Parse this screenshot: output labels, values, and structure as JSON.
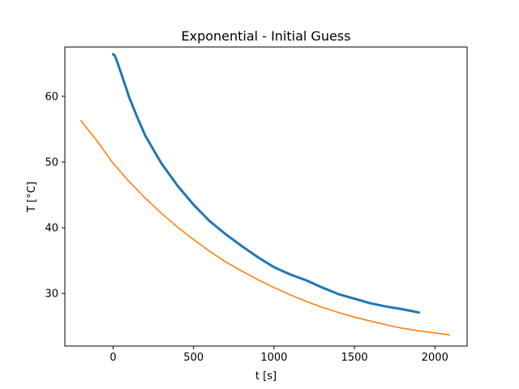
{
  "chart_data": {
    "type": "line",
    "title": "Exponential - Initial Guess",
    "xlabel": "t [s]",
    "ylabel": "T [°C]",
    "xlim": [
      -300,
      2200
    ],
    "ylim": [
      22,
      67.5
    ],
    "grid": false,
    "legend": "none",
    "xticks": [
      {
        "value": 0,
        "label": "0"
      },
      {
        "value": 500,
        "label": "500"
      },
      {
        "value": 1000,
        "label": "1000"
      },
      {
        "value": 1500,
        "label": "1500"
      },
      {
        "value": 2000,
        "label": "2000"
      }
    ],
    "yticks": [
      {
        "value": 30,
        "label": "30"
      },
      {
        "value": 40,
        "label": "40"
      },
      {
        "value": 50,
        "label": "50"
      },
      {
        "value": 60,
        "label": "60"
      }
    ],
    "series": [
      {
        "color": "#1f77b4",
        "stroke_weight": "thick",
        "x": [
          0,
          10,
          20,
          50,
          100,
          150,
          200,
          300,
          400,
          500,
          600,
          700,
          800,
          900,
          1000,
          1100,
          1200,
          1300,
          1400,
          1500,
          1600,
          1700,
          1800,
          1900
        ],
        "y": [
          66.4,
          66.2,
          65.6,
          63.5,
          59.8,
          56.8,
          54.0,
          49.8,
          46.4,
          43.5,
          41.0,
          39.0,
          37.2,
          35.5,
          34.0,
          32.9,
          32.0,
          30.9,
          29.9,
          29.2,
          28.5,
          28.0,
          27.6,
          27.1
        ]
      },
      {
        "color": "#ff7f0e",
        "stroke_weight": "normal",
        "x": [
          -200,
          -100,
          0,
          100,
          200,
          300,
          400,
          500,
          600,
          700,
          800,
          900,
          1000,
          1100,
          1200,
          1300,
          1400,
          1500,
          1600,
          1700,
          1800,
          1900,
          2000,
          2090
        ],
        "y": [
          56.3,
          53.2,
          49.8,
          47.0,
          44.5,
          42.2,
          40.1,
          38.2,
          36.4,
          34.8,
          33.4,
          32.1,
          30.9,
          29.8,
          28.8,
          27.9,
          27.1,
          26.4,
          25.8,
          25.2,
          24.7,
          24.3,
          24.0,
          23.7
        ]
      }
    ]
  }
}
